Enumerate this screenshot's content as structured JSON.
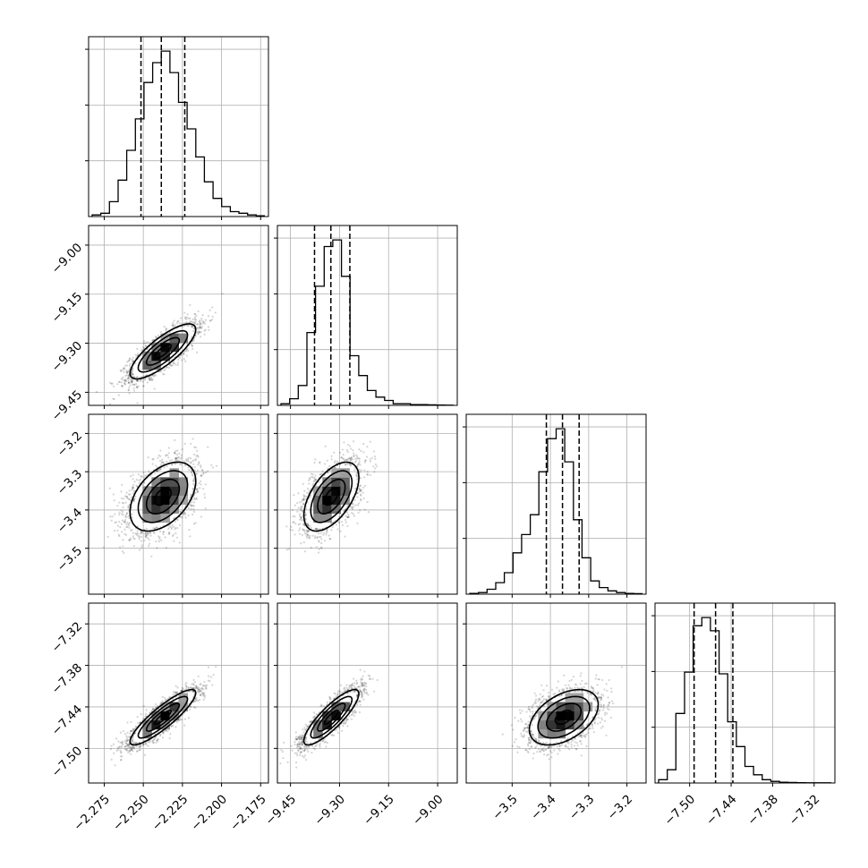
{
  "chart_data": {
    "type": "corner",
    "parameters": [
      {
        "index": 0,
        "mean": -2.2375,
        "sd": 0.0105,
        "range": [
          -2.285,
          -2.17
        ],
        "ticks": [
          -2.275,
          -2.25,
          -2.225,
          -2.2,
          -2.175
        ],
        "tick_labels": [
          "−2.275",
          "−2.250",
          "−2.225",
          "−2.200",
          "−2.175"
        ],
        "quantiles": [
          -2.2515,
          -2.2385,
          -2.2235
        ],
        "hist": [
          0.01,
          0.02,
          0.09,
          0.22,
          0.4,
          0.59,
          0.81,
          0.93,
          1.0,
          0.87,
          0.69,
          0.53,
          0.36,
          0.21,
          0.11,
          0.06,
          0.03,
          0.02,
          0.01,
          0.005
        ]
      },
      {
        "index": 1,
        "mean": -9.325,
        "sd": 0.042,
        "range": [
          -9.49,
          -8.94
        ],
        "ticks": [
          -9.45,
          -9.3,
          -9.15,
          -9.0
        ],
        "tick_labels": [
          "−9.45",
          "−9.30",
          "−9.15",
          "−9.00"
        ],
        "quantiles": [
          -9.3765,
          -9.3265,
          -9.2685
        ],
        "hist": [
          0.01,
          0.04,
          0.12,
          0.44,
          0.72,
          0.96,
          1.0,
          0.78,
          0.3,
          0.18,
          0.09,
          0.05,
          0.03,
          0.01,
          0.01,
          0.005,
          0.005,
          0.003,
          0.002,
          0.001
        ]
      },
      {
        "index": 2,
        "mean": -3.365,
        "sd": 0.045,
        "range": [
          -3.62,
          -3.15
        ],
        "ticks": [
          -3.5,
          -3.4,
          -3.3,
          -3.2
        ],
        "tick_labels": [
          "−3.5",
          "−3.4",
          "−3.3",
          "−3.2"
        ],
        "quantiles": [
          -3.4106,
          -3.3684,
          -3.3249
        ],
        "hist": [
          0.005,
          0.01,
          0.03,
          0.07,
          0.13,
          0.25,
          0.36,
          0.48,
          0.74,
          0.94,
          1.0,
          0.8,
          0.45,
          0.22,
          0.08,
          0.04,
          0.02,
          0.01,
          0.005,
          0.003
        ]
      },
      {
        "index": 3,
        "mean": -7.455,
        "sd": 0.02,
        "range": [
          -7.55,
          -7.29
        ],
        "ticks": [
          -7.5,
          -7.44,
          -7.38,
          -7.32
        ],
        "tick_labels": [
          "−7.50",
          "−7.44",
          "−7.38",
          "−7.32"
        ],
        "quantiles": [
          -7.4935,
          -7.4625,
          -7.4375
        ],
        "hist": [
          0.02,
          0.08,
          0.42,
          0.67,
          0.95,
          1.0,
          0.92,
          0.66,
          0.37,
          0.22,
          0.1,
          0.05,
          0.02,
          0.01,
          0.005,
          0.003,
          0.002,
          0.001,
          0.001,
          0.001
        ]
      }
    ],
    "correlations": [
      [
        1.0,
        0.8,
        0.45,
        0.88
      ],
      [
        0.8,
        1.0,
        0.55,
        0.85
      ],
      [
        0.45,
        0.55,
        1.0,
        0.45
      ],
      [
        0.88,
        0.85,
        0.45,
        1.0
      ]
    ],
    "contour_levels_sigma": [
      0.5,
      1.0,
      1.5,
      2.0
    ],
    "hist_yticks_fraction": [
      0.31,
      0.62,
      0.93
    ],
    "grid": true,
    "title": "",
    "xlabel": "",
    "ylabel": ""
  }
}
